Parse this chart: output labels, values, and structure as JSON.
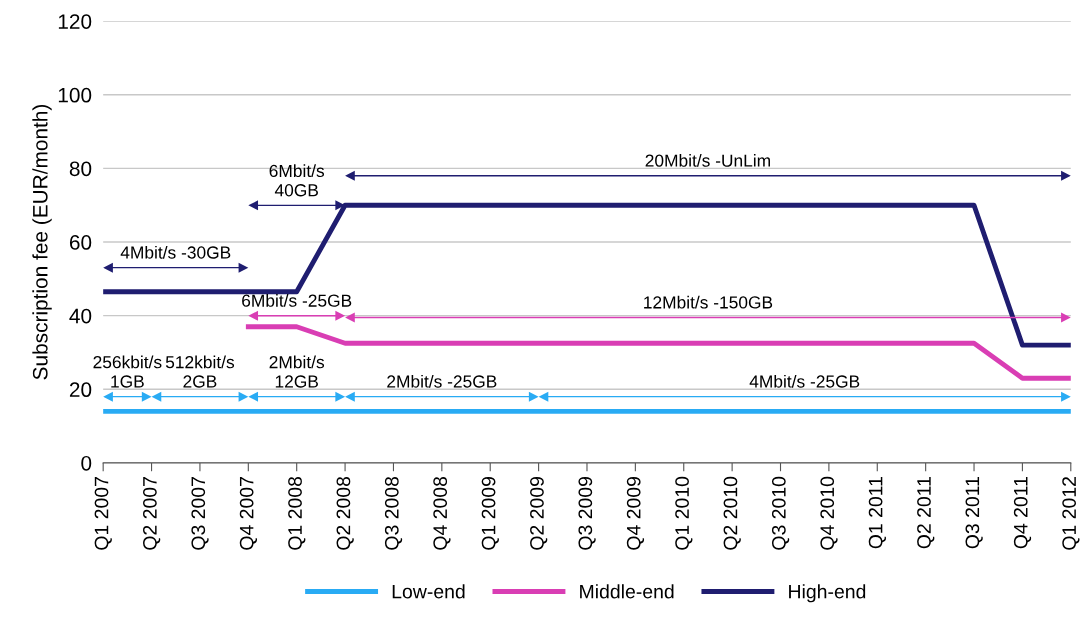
{
  "chart_data": {
    "type": "line",
    "ylabel": "Subscription fee (EUR/month)",
    "categories": [
      "Q1 2007",
      "Q2 2007",
      "Q3 2007",
      "Q4 2007",
      "Q1 2008",
      "Q2 2008",
      "Q3 2008",
      "Q4 2008",
      "Q1 2009",
      "Q2 2009",
      "Q3 2009",
      "Q4 2009",
      "Q1 2010",
      "Q2 2010",
      "Q3 2010",
      "Q4 2010",
      "Q1 2011",
      "Q2 2011",
      "Q3 2011",
      "Q4 2011",
      "Q1 2012"
    ],
    "series": [
      {
        "name": "Low-end",
        "color": "#29abf4",
        "values": [
          14,
          14,
          14,
          14,
          14,
          14,
          14,
          14,
          14,
          14,
          14,
          14,
          14,
          14,
          14,
          14,
          14,
          14,
          14,
          14,
          14
        ]
      },
      {
        "name": "Middle-end",
        "color": "#d93eb4",
        "values": [
          null,
          null,
          null,
          37,
          37,
          32.5,
          32.5,
          32.5,
          32.5,
          32.5,
          32.5,
          32.5,
          32.5,
          32.5,
          32.5,
          32.5,
          32.5,
          32.5,
          32.5,
          23,
          23
        ]
      },
      {
        "name": "High-end",
        "color": "#1f1d70",
        "values": [
          46.5,
          46.5,
          46.5,
          46.5,
          46.5,
          70,
          70,
          70,
          70,
          70,
          70,
          70,
          70,
          70,
          70,
          70,
          70,
          70,
          70,
          32,
          32
        ]
      }
    ],
    "ylim": [
      0,
      120
    ],
    "yticks": [
      0,
      20,
      40,
      60,
      80,
      100,
      120
    ],
    "grid": "y",
    "legend": "bottom",
    "marker": "none",
    "line_style": "solid",
    "annotations": [
      "256kbit/s\n1GB",
      "512kbit/s\n2GB",
      "2Mbit/s\n12GB",
      "2Mbit/s -25GB",
      "4Mbit/s -25GB",
      "6Mbit/s -25GB",
      "12Mbit/s -150GB",
      "4Mbit/s -30GB",
      "6Mbit/s\n40GB",
      "20Mbit/s -UnLim"
    ]
  }
}
